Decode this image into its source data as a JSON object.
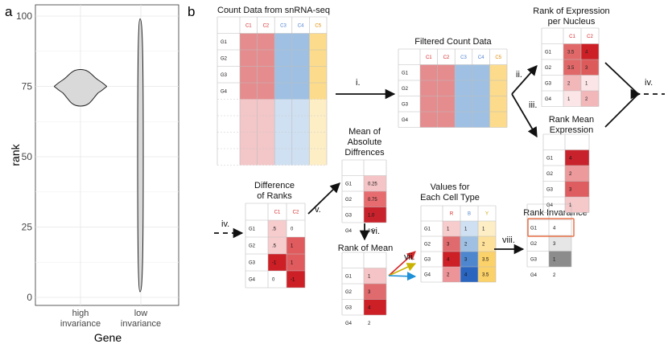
{
  "panel_a": {
    "letter": "a",
    "ylabel": "rank",
    "xlabel": "Gene",
    "yticks": [
      "0",
      "25",
      "50",
      "75",
      "100"
    ],
    "cat1": [
      "high",
      "invariance"
    ],
    "cat2": [
      "low",
      "invariance"
    ]
  },
  "chart_data": {
    "type": "violin",
    "categories": [
      "high invariance",
      "low invariance"
    ],
    "series": [
      {
        "category": "high invariance",
        "range": [
          68,
          81
        ],
        "peak": 75
      },
      {
        "category": "low invariance",
        "range": [
          2,
          99
        ],
        "peak": 50
      }
    ],
    "ylabel": "rank",
    "xlabel": "Gene",
    "ylim": [
      0,
      100
    ],
    "grid": true
  },
  "panel_b": {
    "letter": "b",
    "count_title": "Count Data from snRNA-seq",
    "filtered_title": "Filtered Count Data",
    "rank_expr_title": [
      "Rank of Expression",
      "per Nucleus"
    ],
    "rank_mean_expr_title": [
      "Rank Mean",
      "Expression"
    ],
    "diff_title": [
      "Difference",
      "of Ranks"
    ],
    "mad_title": [
      "Mean of",
      "Absolute",
      "Diffrences"
    ],
    "rank_mean_title": "Rank of Mean",
    "values_title": [
      "Values for",
      "Each Cell Type"
    ],
    "invariance_title": "Rank Invaraince",
    "cols5": [
      "C1",
      "C2",
      "C3",
      "C4",
      "C5"
    ],
    "cols2": [
      "C1",
      "C2"
    ],
    "genes": [
      "G1",
      "G2",
      "G3",
      "G4"
    ],
    "rank_expr_vals": [
      [
        "3.5",
        "4"
      ],
      [
        "3.5",
        "3"
      ],
      [
        "2",
        "1"
      ],
      [
        "1",
        "2"
      ]
    ],
    "rank_mean_expr_vals": [
      "4",
      "2",
      "3",
      "1"
    ],
    "diff_vals": [
      [
        ".5",
        "0"
      ],
      [
        ".5",
        "1"
      ],
      [
        "-1",
        "1"
      ],
      [
        "0",
        "-1"
      ]
    ],
    "mad_vals": [
      "0.25",
      "0.75",
      "1.0",
      "0.5"
    ],
    "rank_mean_vals": [
      "1",
      "3",
      "4",
      "2"
    ],
    "values_cols": [
      "R",
      "B",
      "Y"
    ],
    "values_vals": [
      [
        "1",
        "1",
        "1"
      ],
      [
        "3",
        "2",
        "2"
      ],
      [
        "4",
        "3",
        "3.5"
      ],
      [
        "2",
        "4",
        "3.5"
      ]
    ],
    "inv_vals": [
      "4",
      "3",
      "1",
      "2"
    ],
    "steps": [
      "i.",
      "ii.",
      "iii.",
      "iv.",
      "iv.",
      "v.",
      "vi.",
      "vii.",
      "viii."
    ]
  }
}
